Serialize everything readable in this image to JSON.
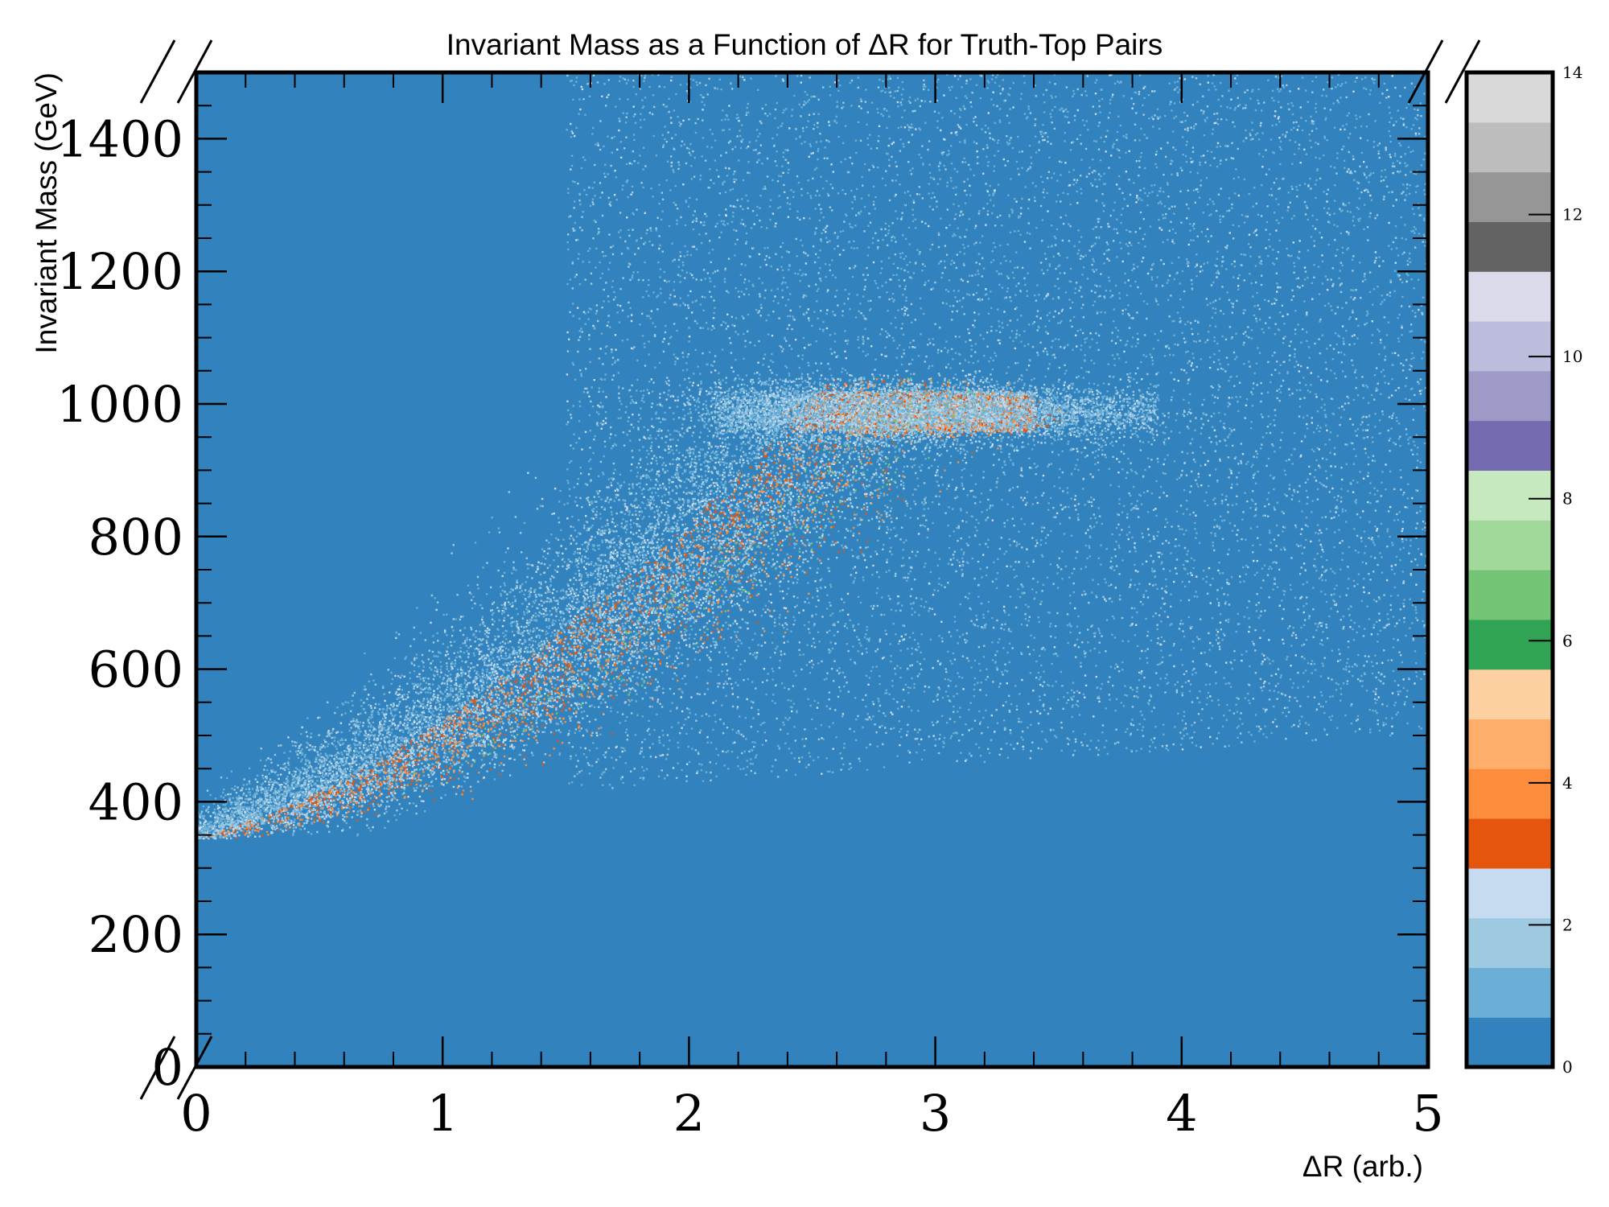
{
  "chart_data": {
    "type": "heatmap",
    "title": "Invariant Mass as a Function of ΔR for Truth-Top Pairs",
    "xlabel": "ΔR (arb.)",
    "ylabel": "Invariant Mass (GeV)",
    "xlim": [
      0,
      5
    ],
    "ylim": [
      0,
      1500
    ],
    "x_ticks": [
      {
        "value": 0,
        "label": "0"
      },
      {
        "value": 1,
        "label": "1"
      },
      {
        "value": 2,
        "label": "2"
      },
      {
        "value": 3,
        "label": "3"
      },
      {
        "value": 4,
        "label": "4"
      },
      {
        "value": 5,
        "label": "5"
      }
    ],
    "y_ticks": [
      {
        "value": 0,
        "label": "0"
      },
      {
        "value": 200,
        "label": "200"
      },
      {
        "value": 400,
        "label": "400"
      },
      {
        "value": 600,
        "label": "600"
      },
      {
        "value": 800,
        "label": "800"
      },
      {
        "value": 1000,
        "label": "1000"
      },
      {
        "value": 1200,
        "label": "1200"
      },
      {
        "value": 1400,
        "label": "1400"
      }
    ],
    "colorbar": {
      "range": [
        0,
        14
      ],
      "ticks": [
        {
          "value": 0,
          "label": "0"
        },
        {
          "value": 2,
          "label": "2"
        },
        {
          "value": 4,
          "label": "4"
        },
        {
          "value": 6,
          "label": "6"
        },
        {
          "value": 8,
          "label": "8"
        },
        {
          "value": 10,
          "label": "10"
        },
        {
          "value": 12,
          "label": "12"
        },
        {
          "value": 14,
          "label": "14"
        }
      ],
      "colors": [
        "#3182bd",
        "#6baed6",
        "#9ecae1",
        "#c6dbef",
        "#e6550d",
        "#fd8d3c",
        "#fdae6b",
        "#fdd0a2",
        "#31a354",
        "#74c476",
        "#a1d99b",
        "#c7e9c0",
        "#756bb1",
        "#9e9ac8",
        "#bcbddc",
        "#dadaeb",
        "#636363",
        "#969696",
        "#bdbdbd",
        "#d9d9d9"
      ]
    },
    "background_color": "#3182bd",
    "features": [
      {
        "description": "band",
        "x_range": [
          0.05,
          3.1
        ],
        "y_at_start": 345,
        "y_at_end": 1000
      },
      {
        "description": "peak",
        "x": 2.95,
        "y": 990
      }
    ]
  }
}
